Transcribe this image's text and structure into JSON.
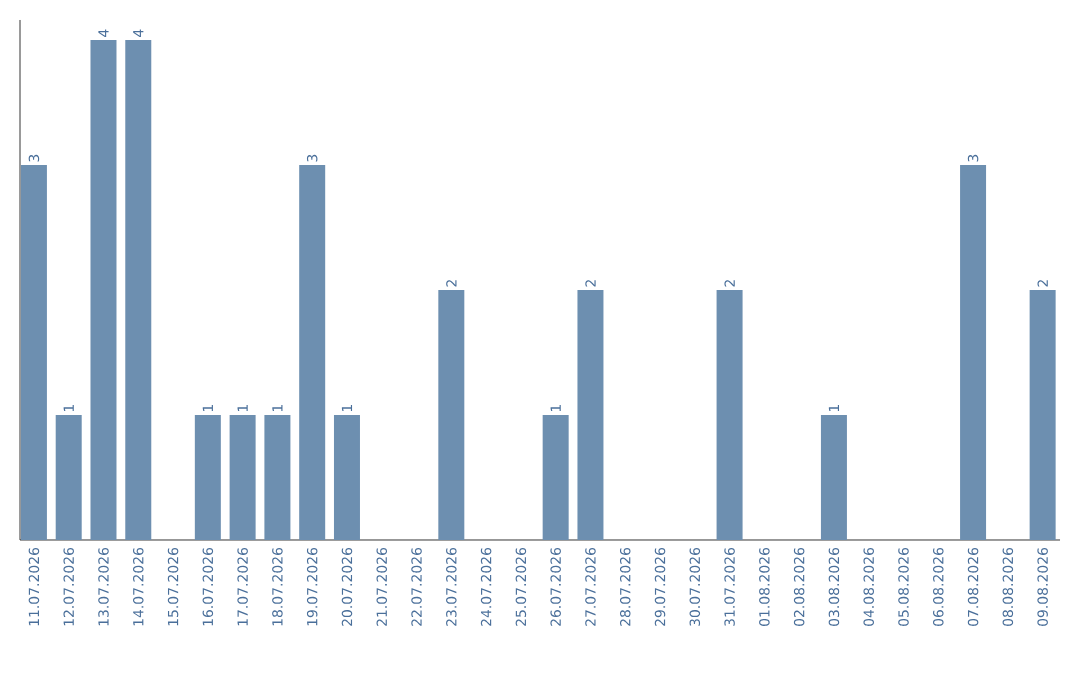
{
  "chart_data": {
    "type": "bar",
    "relative": false,
    "categories": [
      "11.07.2026",
      "12.07.2026",
      "13.07.2026",
      "14.07.2026",
      "15.07.2026",
      "16.07.2026",
      "17.07.2026",
      "18.07.2026",
      "19.07.2026",
      "20.07.2026",
      "21.07.2026",
      "22.07.2026",
      "23.07.2026",
      "24.07.2026",
      "25.07.2026",
      "26.07.2026",
      "27.07.2026",
      "28.07.2026",
      "29.07.2026",
      "30.07.2026",
      "31.07.2026",
      "01.08.2026",
      "02.08.2026",
      "03.08.2026",
      "04.08.2026",
      "05.08.2026",
      "06.08.2026",
      "07.08.2026",
      "08.08.2026",
      "09.08.2026"
    ],
    "values": [
      3,
      1,
      4,
      4,
      0,
      1,
      1,
      1,
      3,
      1,
      0,
      0,
      2,
      0,
      0,
      1,
      2,
      0,
      0,
      0,
      2,
      0,
      0,
      1,
      0,
      0,
      0,
      3,
      0,
      2
    ],
    "value_labels": [
      "3",
      "1",
      "4",
      "4",
      null,
      "1",
      "1",
      "1",
      "3",
      "1",
      null,
      null,
      "2",
      null,
      null,
      "1",
      "2",
      null,
      null,
      null,
      "2",
      null,
      null,
      "1",
      null,
      null,
      null,
      "3",
      null,
      "2"
    ],
    "color": "#6d8fb0"
  }
}
